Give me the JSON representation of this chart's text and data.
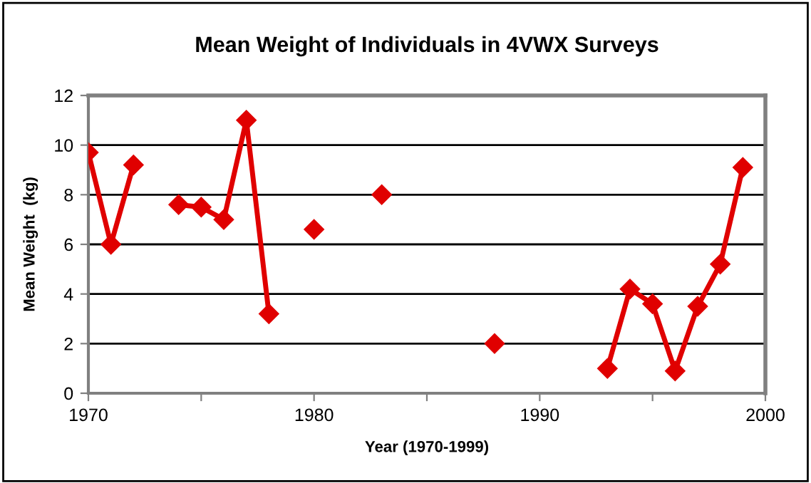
{
  "chart_data": {
    "type": "line",
    "title": "Mean Weight of Individuals in 4VWX Surveys",
    "xlabel": "Year (1970-1999)",
    "ylabel": "Mean Weight  (kg)",
    "x": [
      1970,
      1971,
      1972,
      1973,
      1974,
      1975,
      1976,
      1977,
      1978,
      1979,
      1980,
      1981,
      1982,
      1983,
      1984,
      1985,
      1986,
      1987,
      1988,
      1989,
      1990,
      1991,
      1992,
      1993,
      1994,
      1995,
      1996,
      1997,
      1998,
      1999
    ],
    "series": [
      {
        "color": "#e00000",
        "values": [
          9.7,
          6.0,
          9.2,
          null,
          7.6,
          7.5,
          7.0,
          11.0,
          3.2,
          null,
          6.6,
          null,
          null,
          8.0,
          null,
          null,
          null,
          null,
          2.0,
          null,
          null,
          null,
          null,
          1.0,
          4.2,
          3.6,
          0.9,
          3.5,
          5.2,
          9.1
        ]
      }
    ],
    "xlim": [
      1970,
      2000
    ],
    "xticks": [
      1970,
      {
        "value": 1975,
        "label": null
      },
      1980,
      {
        "value": 1985,
        "label": null
      },
      1990,
      {
        "value": 1995,
        "label": null
      },
      2000
    ],
    "ylim": [
      0,
      12
    ],
    "yticks": [
      0,
      2,
      4,
      6,
      8,
      10,
      12
    ],
    "grid": "y",
    "marker": "diamond",
    "line_style": "solid"
  }
}
